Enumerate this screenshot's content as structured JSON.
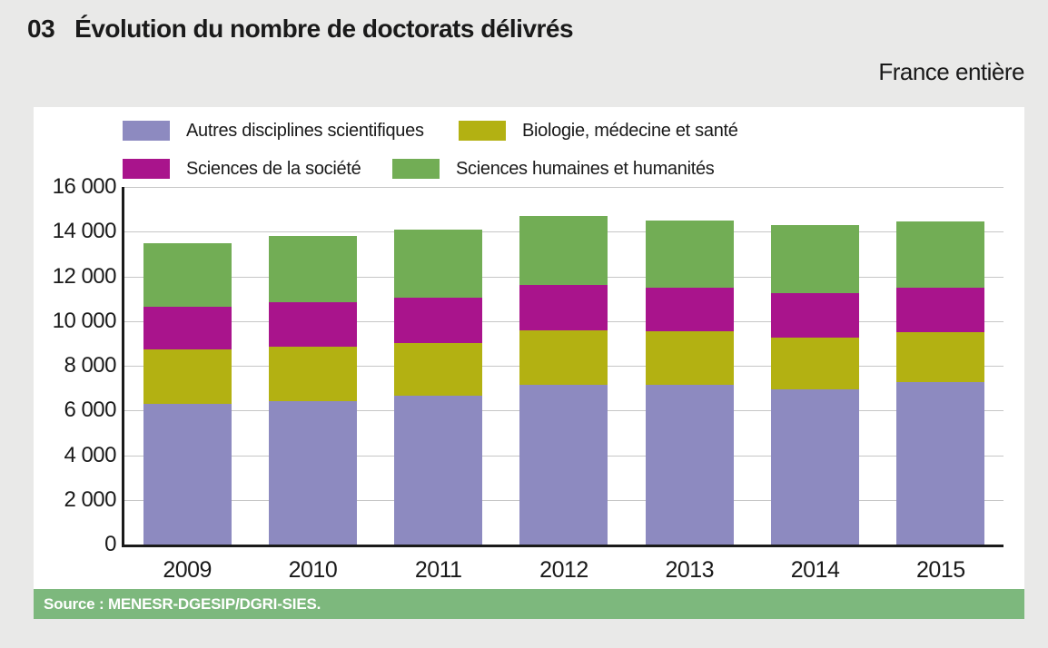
{
  "header": {
    "number": "03",
    "title": "Évolution du nombre de doctorats délivrés",
    "region": "France entière"
  },
  "source": {
    "text": "Source : MENESR-DGESIP/DGRI-SIES."
  },
  "colors": {
    "page_bg": "#e9e9e8",
    "panel_bg": "#ffffff",
    "text": "#1a1a1a",
    "gridline": "#c6c6c6",
    "axis": "#1a1a1a",
    "source_band_bg": "#7db87d",
    "source_text": "#ffffff"
  },
  "chart_data": {
    "type": "bar",
    "stacked": true,
    "title": "Évolution du nombre de doctorats délivrés",
    "xlabel": "",
    "ylabel": "",
    "categories": [
      "2009",
      "2010",
      "2011",
      "2012",
      "2013",
      "2014",
      "2015"
    ],
    "series": [
      {
        "name": "Autres disciplines scientifiques",
        "color": "#8d8ac0",
        "values": [
          6300,
          6400,
          6650,
          7150,
          7150,
          6950,
          7250
        ]
      },
      {
        "name": "Biologie, médecine et santé",
        "color": "#b3b112",
        "values": [
          2450,
          2450,
          2350,
          2450,
          2400,
          2300,
          2250
        ]
      },
      {
        "name": "Sciences de la société",
        "color": "#a9148c",
        "values": [
          1900,
          2000,
          2050,
          2000,
          1950,
          2000,
          2000
        ]
      },
      {
        "name": "Sciences humaines et humanités",
        "color": "#72ad55",
        "values": [
          2850,
          2950,
          3050,
          3100,
          3000,
          3050,
          2950
        ]
      }
    ],
    "stack_totals": [
      13500,
      13800,
      14100,
      14700,
      14500,
      14300,
      14450
    ],
    "ylim": [
      0,
      16000
    ],
    "ytick_step": 2000,
    "ytick_labels": [
      "0",
      "2 000",
      "4 000",
      "6 000",
      "8 000",
      "10 000",
      "12 000",
      "14 000",
      "16 000"
    ],
    "grid": "horizontal",
    "legend_position": "top",
    "legend_rows": [
      [
        "Autres disciplines scientifiques",
        "Biologie, médecine et santé"
      ],
      [
        "Sciences de la société",
        "Sciences humaines et humanités"
      ]
    ]
  }
}
